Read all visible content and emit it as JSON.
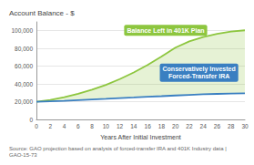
{
  "chart_data": {
    "type": "line",
    "ylabel": "Account Balance - $",
    "xlabel": "Years After Initial Investment",
    "source": "Source: GAO projection based on analysis of forced-transfer IRA and 401K Industry data | GAO-15-73",
    "x": [
      0,
      2,
      4,
      6,
      8,
      10,
      12,
      14,
      16,
      18,
      20,
      22,
      24,
      26,
      28,
      30
    ],
    "series": [
      {
        "name": "Balance Left in 401K Plan",
        "color": "#8dc63f",
        "values": [
          20000,
          22000,
          25000,
          29000,
          33500,
          39000,
          45500,
          53000,
          61500,
          71000,
          81000,
          88000,
          93000,
          96500,
          99000,
          100500
        ]
      },
      {
        "name": "Conservatively Invested\nForced-Transfer IRA",
        "color": "#3a7fc1",
        "values": [
          20000,
          20500,
          21000,
          21800,
          22500,
          23200,
          24000,
          24700,
          25500,
          26200,
          27000,
          27700,
          28300,
          28800,
          29200,
          29500
        ]
      }
    ],
    "xlim": [
      0,
      30
    ],
    "xticks": [
      0,
      2,
      4,
      6,
      8,
      10,
      12,
      14,
      16,
      18,
      20,
      22,
      24,
      26,
      28,
      30
    ],
    "ylim": [
      0,
      110000
    ],
    "yticks": [
      0,
      {
        "value": 20000,
        "label": "20,000"
      },
      {
        "value": 40000,
        "label": "40,000"
      },
      {
        "value": 60000,
        "label": "60,000"
      },
      {
        "value": 80000,
        "label": "80,000"
      },
      {
        "value": 100000,
        "label": "100,000"
      }
    ],
    "grid": true
  }
}
